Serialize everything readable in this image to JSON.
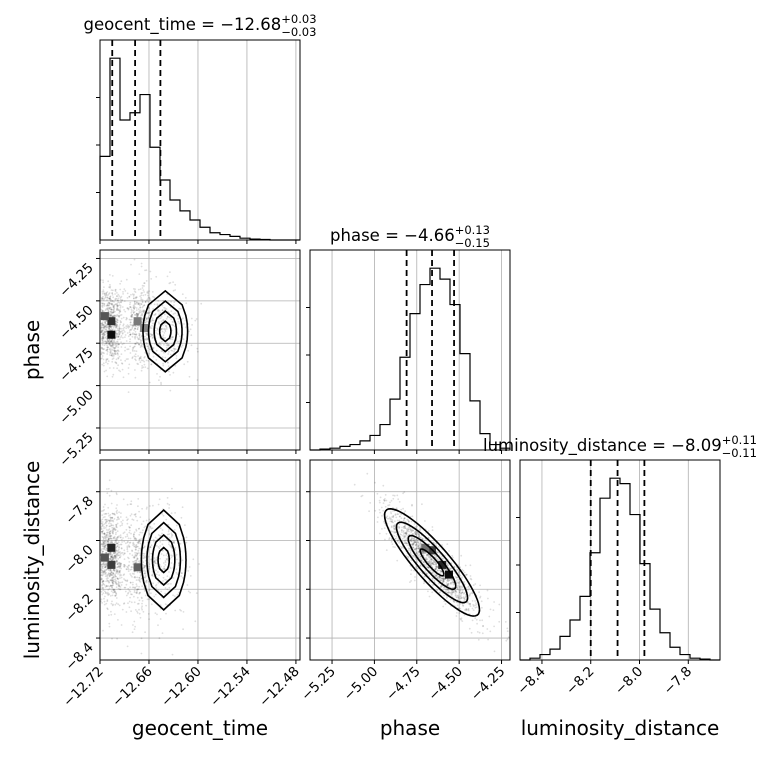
{
  "chart_data": {
    "type": "corner",
    "parameters": [
      "geocent_time",
      "phase",
      "luminosity_distance"
    ],
    "axis_labels": {
      "x": [
        "geocent_time",
        "phase",
        "luminosity_distance"
      ],
      "y": [
        "phase",
        "luminosity_distance"
      ]
    },
    "titles": [
      {
        "prefix": "geocent_time = −12.68",
        "sup": "+0.03",
        "sub": "−0.03"
      },
      {
        "prefix": "phase = −4.66",
        "sup": "+0.13",
        "sub": "−0.15"
      },
      {
        "prefix": "luminosity_distance = −8.09",
        "sup": "+0.11",
        "sub": "−0.11"
      }
    ],
    "ranges": {
      "geocent_time": [
        -12.72,
        -12.475
      ],
      "phase": [
        -5.38,
        -4.2
      ],
      "luminosity_distance": [
        -8.49,
        -7.67
      ]
    },
    "ticks": {
      "geocent_time": [
        -12.72,
        -12.66,
        -12.6,
        -12.54,
        -12.48
      ],
      "phase": [
        -5.25,
        -5.0,
        -4.75,
        -4.5,
        -4.25
      ],
      "luminosity_distance": [
        -8.4,
        -8.2,
        -8.0,
        -7.8
      ]
    },
    "tick_labels": {
      "geocent_time": [
        "−12.72",
        "−12.66",
        "−12.60",
        "−12.54",
        "−12.48"
      ],
      "phase": [
        "−5.25",
        "−5.00",
        "−4.75",
        "−4.50",
        "−4.25"
      ],
      "luminosity_distance": [
        "−8.4",
        "−8.2",
        "−8.0",
        "−7.8"
      ]
    },
    "quantiles": {
      "geocent_time": [
        -12.705,
        -12.677,
        -12.646
      ],
      "phase": [
        -4.81,
        -4.66,
        -4.53
      ],
      "luminosity_distance": [
        -8.2,
        -8.09,
        -7.98
      ]
    },
    "histograms": {
      "geocent_time": [
        0.46,
        1.0,
        0.66,
        0.7,
        0.8,
        0.51,
        0.33,
        0.22,
        0.16,
        0.11,
        0.07,
        0.04,
        0.03,
        0.02,
        0.01,
        0.005,
        0.003,
        0,
        0,
        0
      ],
      "phase": [
        0,
        0.005,
        0.01,
        0.02,
        0.03,
        0.05,
        0.08,
        0.14,
        0.28,
        0.51,
        0.75,
        0.91,
        1.0,
        0.94,
        0.8,
        0.53,
        0.27,
        0.09,
        0.03,
        0.01
      ],
      "luminosity_distance": [
        0,
        0.01,
        0.03,
        0.06,
        0.13,
        0.22,
        0.35,
        0.59,
        0.89,
        1.0,
        0.97,
        0.8,
        0.53,
        0.28,
        0.15,
        0.07,
        0.03,
        0.01,
        0.005,
        0
      ]
    },
    "joint": [
      {
        "x": "geocent_time",
        "y": "phase",
        "mean_y": -4.66,
        "sd_y": 0.14,
        "components": [
          {
            "mx": -12.707,
            "my": -4.64,
            "sx": 0.008,
            "sy": 0.11,
            "w": 0.5
          },
          {
            "mx": -12.672,
            "my": -4.63,
            "sx": 0.01,
            "sy": 0.13,
            "w": 0.3
          },
          {
            "mx": -12.64,
            "my": -4.68,
            "sx": 0.016,
            "sy": 0.14,
            "w": 0.2
          }
        ],
        "hot_cells": [
          {
            "x": -12.706,
            "y": -4.62,
            "v": 0.85
          },
          {
            "x": -12.706,
            "y": -4.7,
            "v": 1.0
          },
          {
            "x": -12.714,
            "y": -4.59,
            "v": 0.7
          },
          {
            "x": -12.674,
            "y": -4.62,
            "v": 0.55
          },
          {
            "x": -12.666,
            "y": -4.66,
            "v": 0.5
          }
        ]
      },
      {
        "x": "geocent_time",
        "y": "luminosity_distance",
        "mean_y": -8.09,
        "sd_y": 0.12,
        "components": [
          {
            "mx": -12.707,
            "my": -8.06,
            "sx": 0.008,
            "sy": 0.1,
            "w": 0.5
          },
          {
            "mx": -12.674,
            "my": -8.1,
            "sx": 0.01,
            "sy": 0.11,
            "w": 0.3
          },
          {
            "mx": -12.642,
            "my": -8.08,
            "sx": 0.016,
            "sy": 0.12,
            "w": 0.2
          }
        ],
        "hot_cells": [
          {
            "x": -12.706,
            "y": -8.03,
            "v": 0.9
          },
          {
            "x": -12.706,
            "y": -8.1,
            "v": 0.8
          },
          {
            "x": -12.714,
            "y": -8.07,
            "v": 0.7
          },
          {
            "x": -12.674,
            "y": -8.11,
            "v": 0.65
          }
        ]
      },
      {
        "x": "phase",
        "y": "luminosity_distance",
        "mean_x": -4.66,
        "sd_x": 0.14,
        "mean_y": -8.09,
        "sd_y": 0.11,
        "rho": -0.88,
        "hot_cells": [
          {
            "x": -4.66,
            "y": -8.04,
            "v": 0.8
          },
          {
            "x": -4.6,
            "y": -8.1,
            "v": 0.9
          },
          {
            "x": -4.56,
            "y": -8.14,
            "v": 1.0
          },
          {
            "x": -4.7,
            "y": -8.03,
            "v": 0.6
          }
        ]
      }
    ],
    "grid": true
  }
}
